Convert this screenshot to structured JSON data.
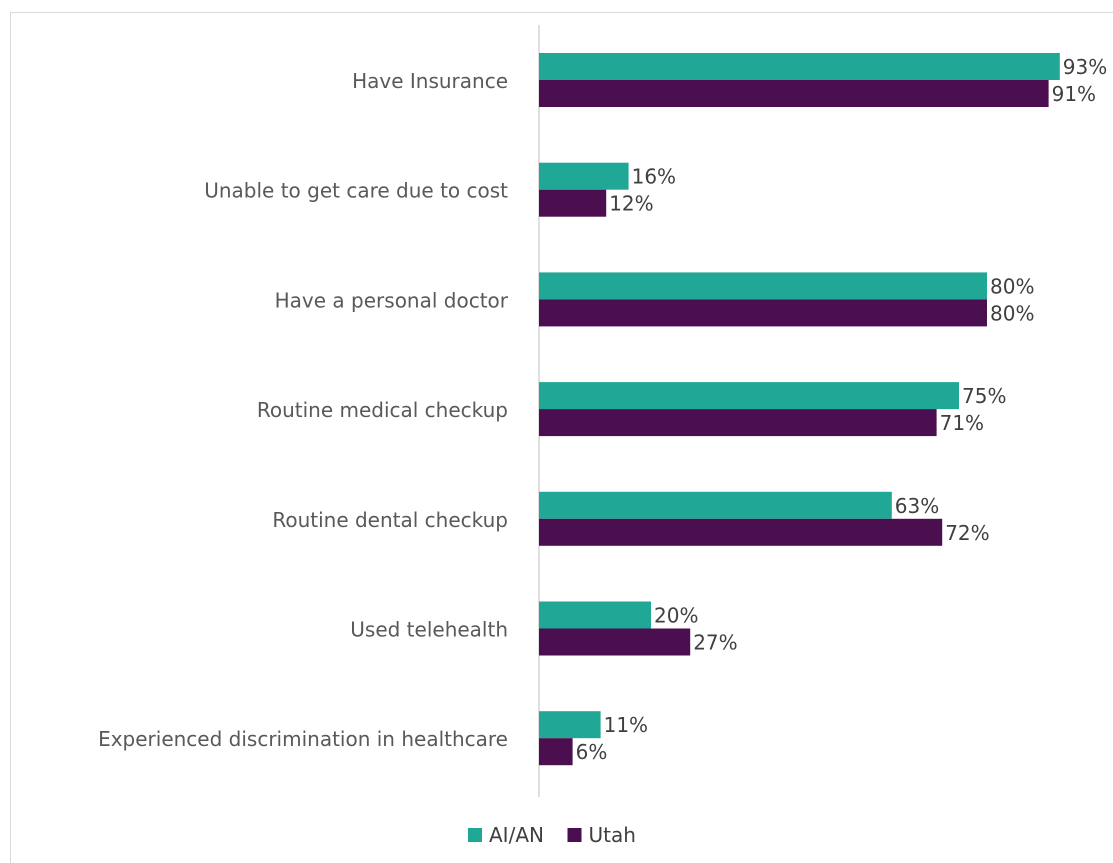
{
  "chart_data": {
    "type": "bar",
    "orientation": "horizontal",
    "categories": [
      "Have Insurance",
      "Unable to get care due to cost",
      "Have a personal doctor",
      "Routine medical checkup",
      "Routine dental checkup",
      "Used telehealth",
      "Experienced discrimination in healthcare"
    ],
    "series": [
      {
        "name": "AI/AN",
        "color": "#21a796",
        "values": [
          93,
          16,
          80,
          75,
          63,
          20,
          11
        ],
        "labels": [
          "93%",
          "16%",
          "80%",
          "75%",
          "63%",
          "20%",
          "11%"
        ]
      },
      {
        "name": "Utah",
        "color": "#4b0e4e",
        "values": [
          91,
          12,
          80,
          71,
          72,
          27,
          6
        ],
        "labels": [
          "91%",
          "12%",
          "80%",
          "71%",
          "72%",
          "27%",
          "6%"
        ]
      }
    ],
    "xlim": [
      0,
      100
    ],
    "grid": false,
    "legend_position": "bottom"
  }
}
